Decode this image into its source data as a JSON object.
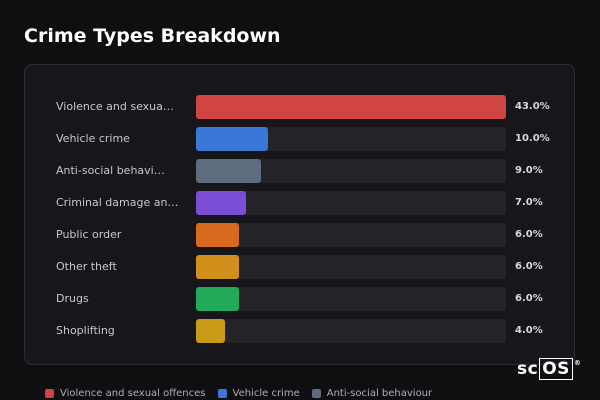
{
  "title": "Crime Types Breakdown",
  "chart_data": {
    "type": "bar",
    "orientation": "horizontal",
    "title": "Crime Types Breakdown",
    "categories": [
      "Violence and sexua…",
      "Vehicle crime",
      "Anti-social behavi…",
      "Criminal damage an…",
      "Public order",
      "Other theft",
      "Drugs",
      "Shoplifting"
    ],
    "values": [
      43.0,
      10.0,
      9.0,
      7.0,
      6.0,
      6.0,
      6.0,
      4.0
    ],
    "value_labels": [
      "43.0%",
      "10.0%",
      "9.0%",
      "7.0%",
      "6.0%",
      "6.0%",
      "6.0%",
      "4.0%"
    ],
    "colors": [
      "#d04444",
      "#3a78d8",
      "#5f6b7e",
      "#7a4fd6",
      "#d86a1e",
      "#d18f1c",
      "#22a95a",
      "#c99a17"
    ],
    "xlim": [
      0,
      43.0
    ],
    "grid": false,
    "legend_position": "bottom"
  },
  "legend": [
    {
      "label": "Violence and sexual offences",
      "color": "#d04444"
    },
    {
      "label": "Vehicle crime",
      "color": "#3a78d8"
    },
    {
      "label": "Anti-social behaviour",
      "color": "#5f6b7e"
    }
  ],
  "logo": {
    "text_a": "sc",
    "text_b": "OS",
    "reg": "®"
  }
}
